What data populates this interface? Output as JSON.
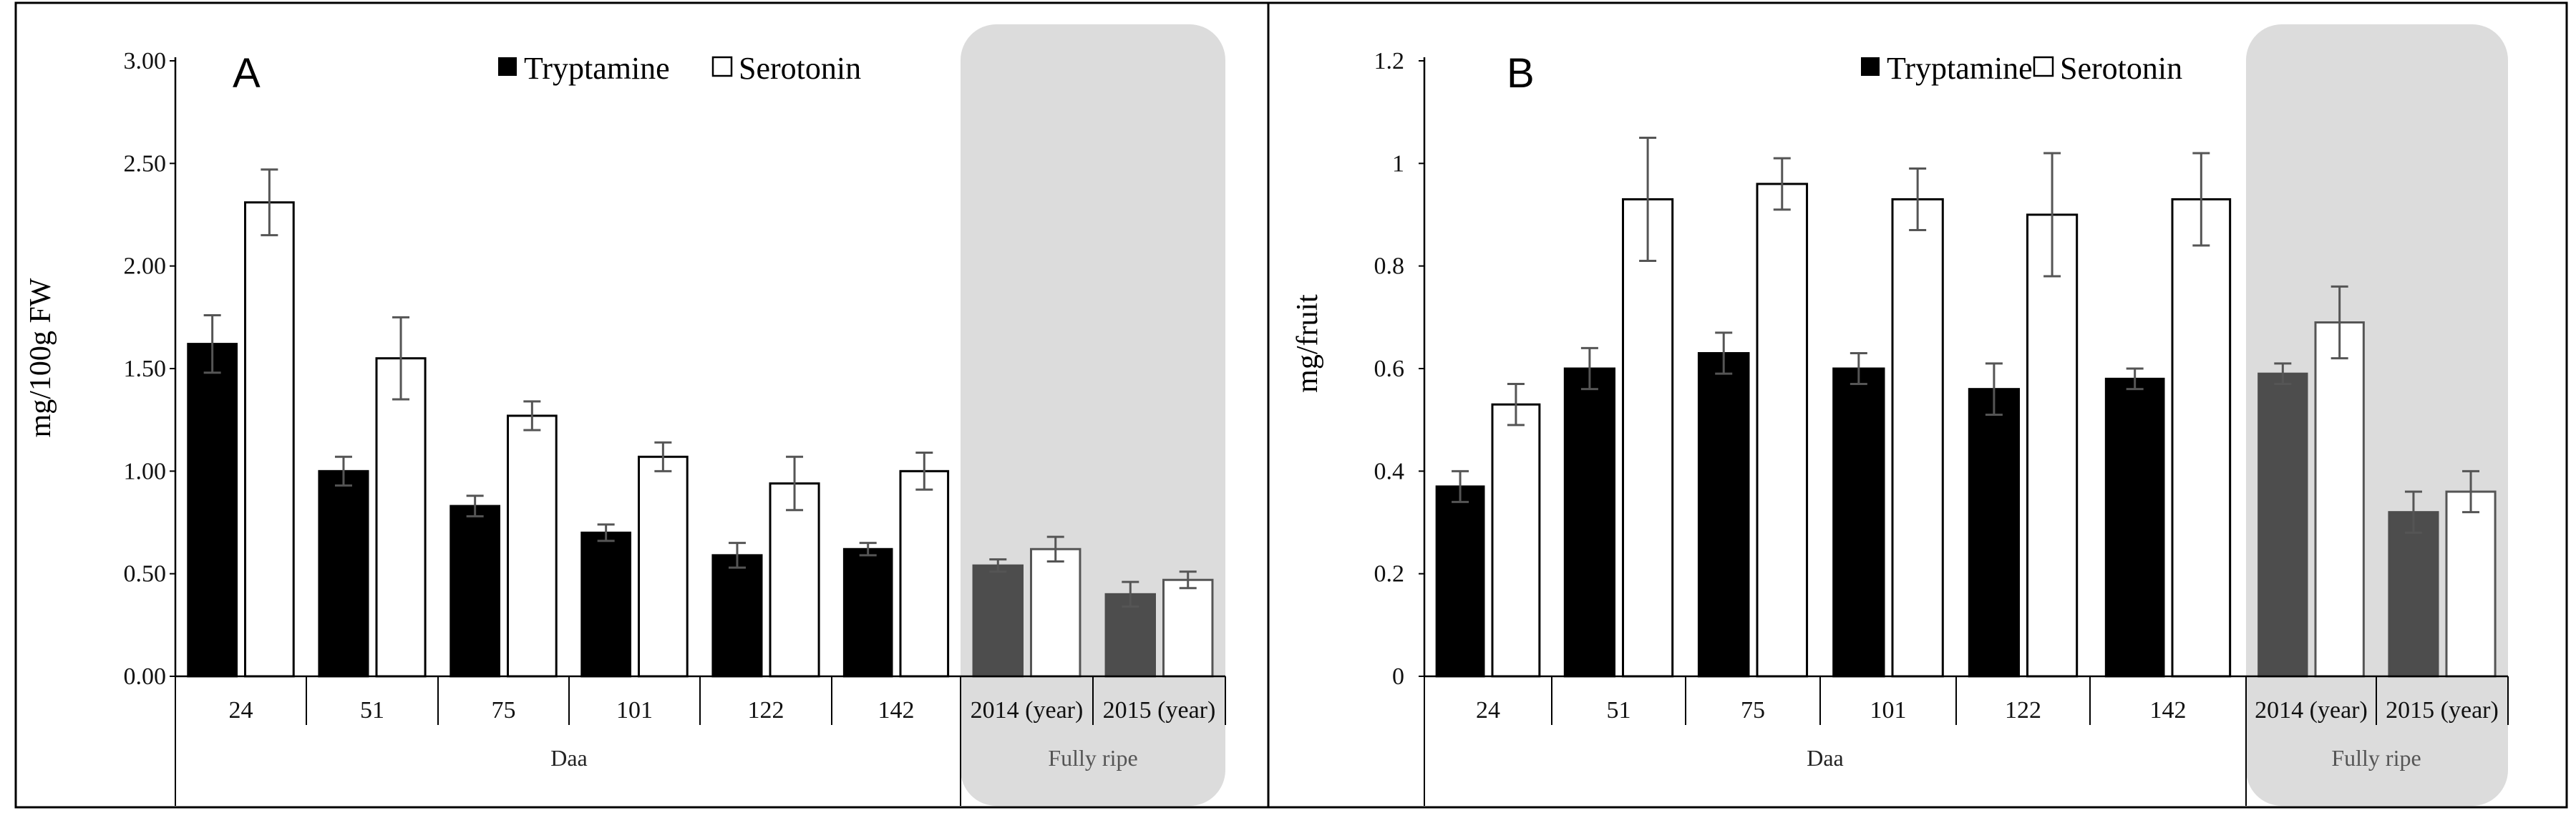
{
  "chart_data": [
    {
      "type": "bar",
      "panel_label": "A",
      "ylabel": "mg/100g FW",
      "ylim": [
        0,
        3
      ],
      "yticks": [
        "0.00",
        "0.50",
        "1.00",
        "1.50",
        "2.00",
        "2.50",
        "3.00"
      ],
      "categories": [
        "24",
        "51",
        "75",
        "101",
        "122",
        "142",
        "2014 (year)",
        "2015 (year)"
      ],
      "group_labels": [
        "Daa",
        "Fully ripe"
      ],
      "highlighted_categories": [
        "2014 (year)",
        "2015 (year)"
      ],
      "legend": [
        "Tryptamine",
        "Serotonin"
      ],
      "series": [
        {
          "name": "Tryptamine",
          "values": [
            1.62,
            1.0,
            0.83,
            0.7,
            0.59,
            0.62,
            0.54,
            0.4
          ],
          "errors": [
            0.14,
            0.07,
            0.05,
            0.04,
            0.06,
            0.03,
            0.03,
            0.06
          ]
        },
        {
          "name": "Serotonin",
          "values": [
            2.31,
            1.55,
            1.27,
            1.07,
            0.94,
            1.0,
            0.62,
            0.47
          ],
          "errors": [
            0.16,
            0.2,
            0.07,
            0.07,
            0.13,
            0.09,
            0.06,
            0.04
          ]
        }
      ]
    },
    {
      "type": "bar",
      "panel_label": "B",
      "ylabel": "mg/fruit",
      "ylim": [
        0,
        1.2
      ],
      "yticks": [
        "0",
        "0.2",
        "0.4",
        "0.6",
        "0.8",
        "1",
        "1.2"
      ],
      "categories": [
        "24",
        "51",
        "75",
        "101",
        "122",
        "142",
        "2014 (year)",
        "2015 (year)"
      ],
      "group_labels": [
        "Daa",
        "Fully ripe"
      ],
      "highlighted_categories": [
        "2014 (year)",
        "2015 (year)"
      ],
      "legend": [
        "Tryptamine",
        "Serotonin"
      ],
      "series": [
        {
          "name": "Tryptamine",
          "values": [
            0.37,
            0.6,
            0.63,
            0.6,
            0.56,
            0.58,
            0.59,
            0.32
          ],
          "errors": [
            0.03,
            0.04,
            0.04,
            0.03,
            0.05,
            0.02,
            0.02,
            0.04
          ]
        },
        {
          "name": "Serotonin",
          "values": [
            0.53,
            0.93,
            0.96,
            0.93,
            0.9,
            0.93,
            0.69,
            0.36
          ],
          "errors": [
            0.04,
            0.12,
            0.05,
            0.06,
            0.12,
            0.09,
            0.07,
            0.04
          ]
        }
      ]
    }
  ],
  "colors": {
    "tryptamine": "#000000",
    "tryptamine_ripe": "#4d4d4d",
    "serotonin": "#ffffff",
    "highlight": "#dcdcdc",
    "error_bar": "#555555"
  }
}
